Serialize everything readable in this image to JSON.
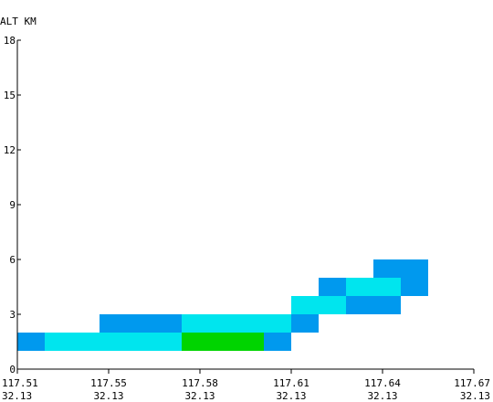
{
  "chart_data": {
    "type": "heatmap",
    "title": "",
    "ylabel": "ALT KM",
    "ylim": [
      0,
      18
    ],
    "y_ticks": [
      "0",
      "3",
      "6",
      "9",
      "12",
      "15",
      "18"
    ],
    "x_ticks": [
      {
        "lon": "117.51",
        "lat": "32.13"
      },
      {
        "lon": "117.55",
        "lat": "32.13"
      },
      {
        "lon": "117.58",
        "lat": "32.13"
      },
      {
        "lon": "117.61",
        "lat": "32.13"
      },
      {
        "lon": "117.64",
        "lat": "32.13"
      },
      {
        "lon": "117.67",
        "lat": "32.13"
      }
    ],
    "x_cell_range": [
      0,
      50
    ],
    "colors": {
      "blue": "#0099ee",
      "cyan": "#00e5ee",
      "green": "#00d400"
    },
    "cells": [
      {
        "x0": 0,
        "x1": 3,
        "y0": 1,
        "y1": 2,
        "color": "blue"
      },
      {
        "x0": 3,
        "x1": 18,
        "y0": 1,
        "y1": 2,
        "color": "cyan"
      },
      {
        "x0": 18,
        "x1": 27,
        "y0": 1,
        "y1": 2,
        "color": "green"
      },
      {
        "x0": 27,
        "x1": 30,
        "y0": 1,
        "y1": 2,
        "color": "blue"
      },
      {
        "x0": 9,
        "x1": 18,
        "y0": 2,
        "y1": 3,
        "color": "blue"
      },
      {
        "x0": 18,
        "x1": 30,
        "y0": 2,
        "y1": 3,
        "color": "cyan"
      },
      {
        "x0": 30,
        "x1": 33,
        "y0": 2,
        "y1": 3,
        "color": "blue"
      },
      {
        "x0": 30,
        "x1": 36,
        "y0": 3,
        "y1": 4,
        "color": "cyan"
      },
      {
        "x0": 36,
        "x1": 42,
        "y0": 3,
        "y1": 4,
        "color": "blue"
      },
      {
        "x0": 33,
        "x1": 36,
        "y0": 4,
        "y1": 5,
        "color": "blue"
      },
      {
        "x0": 36,
        "x1": 42,
        "y0": 4,
        "y1": 5,
        "color": "cyan"
      },
      {
        "x0": 42,
        "x1": 45,
        "y0": 4,
        "y1": 5,
        "color": "blue"
      },
      {
        "x0": 39,
        "x1": 45,
        "y0": 5,
        "y1": 6,
        "color": "blue"
      }
    ]
  }
}
